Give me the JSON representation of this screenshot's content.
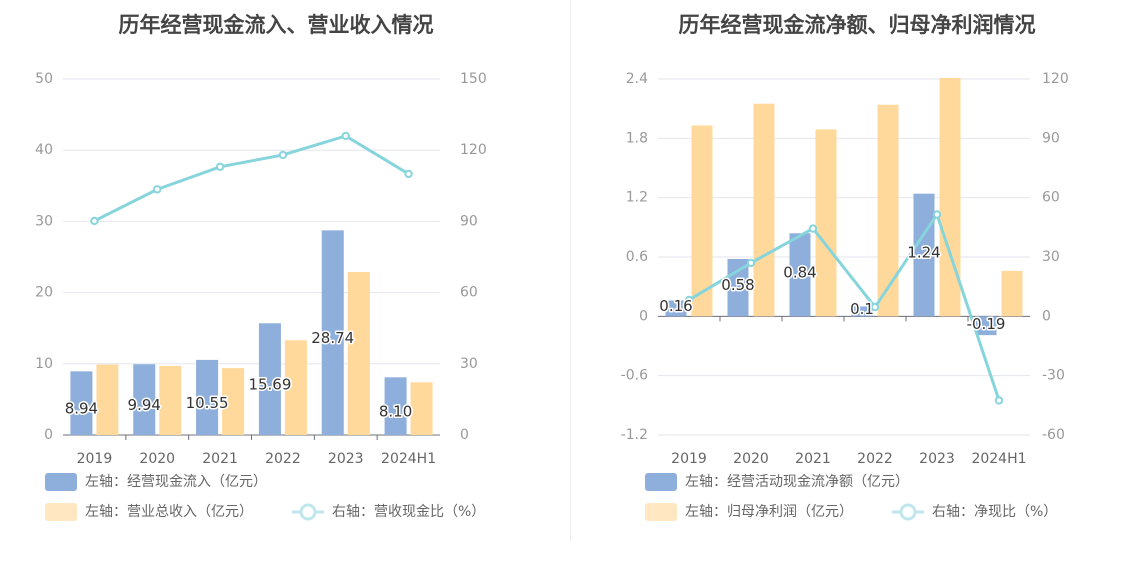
{
  "colors": {
    "bar_primary": "#8eaedc",
    "bar_secondary": "#ffd99b",
    "line": "#86d4dc",
    "grid": "#e4e6ee",
    "title": "#444444"
  },
  "chart_data": [
    {
      "type": "bar",
      "title": "历年经营现金流入、营业收入情况",
      "categories": [
        "2019",
        "2020",
        "2021",
        "2022",
        "2023",
        "2024H1"
      ],
      "left_axis": {
        "ylim": [
          0,
          50
        ],
        "ticks": [
          "0",
          "10",
          "20",
          "30",
          "40",
          "50"
        ]
      },
      "right_axis": {
        "ylim": [
          0,
          150
        ],
        "ticks": [
          "0",
          "30",
          "60",
          "90",
          "120",
          "150"
        ]
      },
      "series": [
        {
          "name": "左轴：经营现金流入（亿元）",
          "axis": "left",
          "kind": "bar",
          "values": [
            8.94,
            9.94,
            10.55,
            15.69,
            28.74,
            8.1
          ],
          "labels": [
            "8.94",
            "9.94",
            "10.55",
            "15.69",
            "28.74",
            "8.10"
          ]
        },
        {
          "name": "左轴：营业总收入（亿元）",
          "axis": "left",
          "kind": "bar",
          "values": [
            9.9,
            9.7,
            9.4,
            13.3,
            22.9,
            7.4
          ]
        },
        {
          "name": "右轴：营收现金比（%）",
          "axis": "right",
          "kind": "line",
          "values": [
            90.2,
            103.5,
            113.0,
            118.0,
            126.0,
            110.0
          ]
        }
      ],
      "legend_position": "bottom-left",
      "grid": true
    },
    {
      "type": "bar",
      "title": "历年经营现金流净额、归母净利润情况",
      "categories": [
        "2019",
        "2020",
        "2021",
        "2022",
        "2023",
        "2024H1"
      ],
      "left_axis": {
        "ylim": [
          -1.2,
          2.4
        ],
        "ticks": [
          "-1.2",
          "-0.6",
          "0",
          "0.6",
          "1.2",
          "1.8",
          "2.4"
        ]
      },
      "right_axis": {
        "ylim": [
          -60,
          120
        ],
        "ticks": [
          "-60",
          "-30",
          "0",
          "30",
          "60",
          "90",
          "120"
        ]
      },
      "series": [
        {
          "name": "左轴：经营活动现金流净额（亿元）",
          "axis": "left",
          "kind": "bar",
          "values": [
            0.16,
            0.58,
            0.84,
            0.1,
            1.24,
            -0.19
          ],
          "labels": [
            "0.16",
            "0.58",
            "0.84",
            "0.1",
            "1.24",
            "-0.19"
          ]
        },
        {
          "name": "左轴：归母净利润（亿元）",
          "axis": "left",
          "kind": "bar",
          "values": [
            1.93,
            2.15,
            1.89,
            2.14,
            2.41,
            0.46
          ]
        },
        {
          "name": "右轴：净现比（%）",
          "axis": "right",
          "kind": "line",
          "values": [
            8.3,
            27.0,
            44.4,
            4.7,
            51.5,
            -42.5
          ]
        }
      ],
      "legend_position": "bottom-left",
      "grid": true
    }
  ]
}
